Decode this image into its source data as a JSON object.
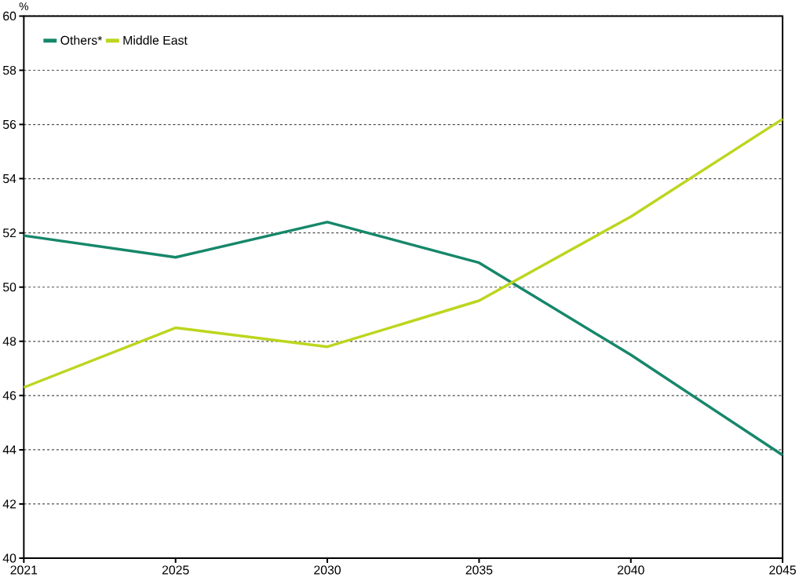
{
  "chart_data": {
    "type": "line",
    "ylabel": "%",
    "categories": [
      "2021",
      "2025",
      "2030",
      "2035",
      "2040",
      "2045"
    ],
    "series": [
      {
        "name": "Others*",
        "color": "#16876a",
        "values": [
          51.9,
          51.1,
          52.4,
          50.9,
          47.5,
          43.8
        ]
      },
      {
        "name": "Middle East",
        "color": "#bdd51e",
        "values": [
          46.3,
          48.5,
          47.8,
          49.5,
          52.6,
          56.2
        ]
      }
    ],
    "ylim": [
      40,
      60
    ],
    "yticks": [
      40,
      42,
      44,
      46,
      48,
      50,
      52,
      54,
      56,
      58,
      60
    ],
    "grid": "y",
    "legend": "top left",
    "marker": "none",
    "line_style": "solid"
  }
}
